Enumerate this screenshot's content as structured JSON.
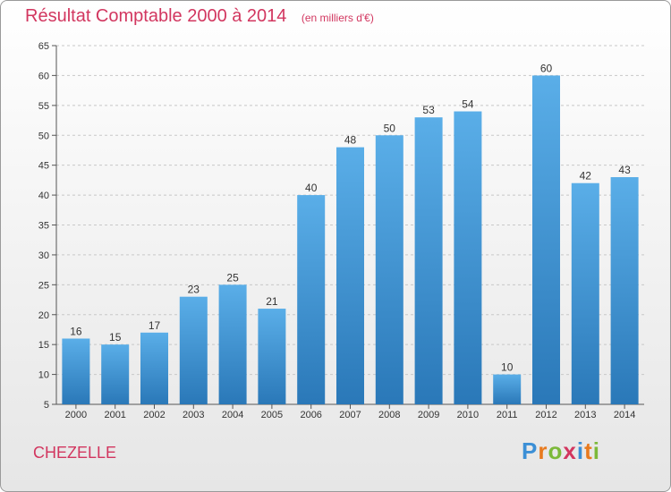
{
  "header": {
    "title": "Résultat Comptable 2000 à 2014",
    "subtitle": "(en milliers d'€)"
  },
  "footer": {
    "place": "CHEZELLE",
    "brand": "Proxiti"
  },
  "colors": {
    "title": "#d2365f",
    "bar_top": "#5aaee8",
    "bar_bottom": "#2a78b8",
    "brand_letters": [
      "#3b8fd6",
      "#e87a1e",
      "#7cb93a",
      "#d2365f",
      "#3b8fd6",
      "#e87a1e",
      "#7cb93a"
    ]
  },
  "chart_data": {
    "type": "bar",
    "title": "Résultat Comptable 2000 à 2014",
    "categories": [
      "2000",
      "2001",
      "2002",
      "2003",
      "2004",
      "2005",
      "2006",
      "2007",
      "2008",
      "2009",
      "2010",
      "2011",
      "2012",
      "2013",
      "2014"
    ],
    "values": [
      16,
      15,
      17,
      23,
      25,
      21,
      40,
      48,
      50,
      53,
      54,
      10,
      60,
      42,
      43
    ],
    "ylim": [
      5,
      65
    ],
    "yticks": [
      5,
      10,
      15,
      20,
      25,
      30,
      35,
      40,
      45,
      50,
      55,
      60,
      65
    ],
    "grid": "horizontal-dashed",
    "data_labels": true
  }
}
